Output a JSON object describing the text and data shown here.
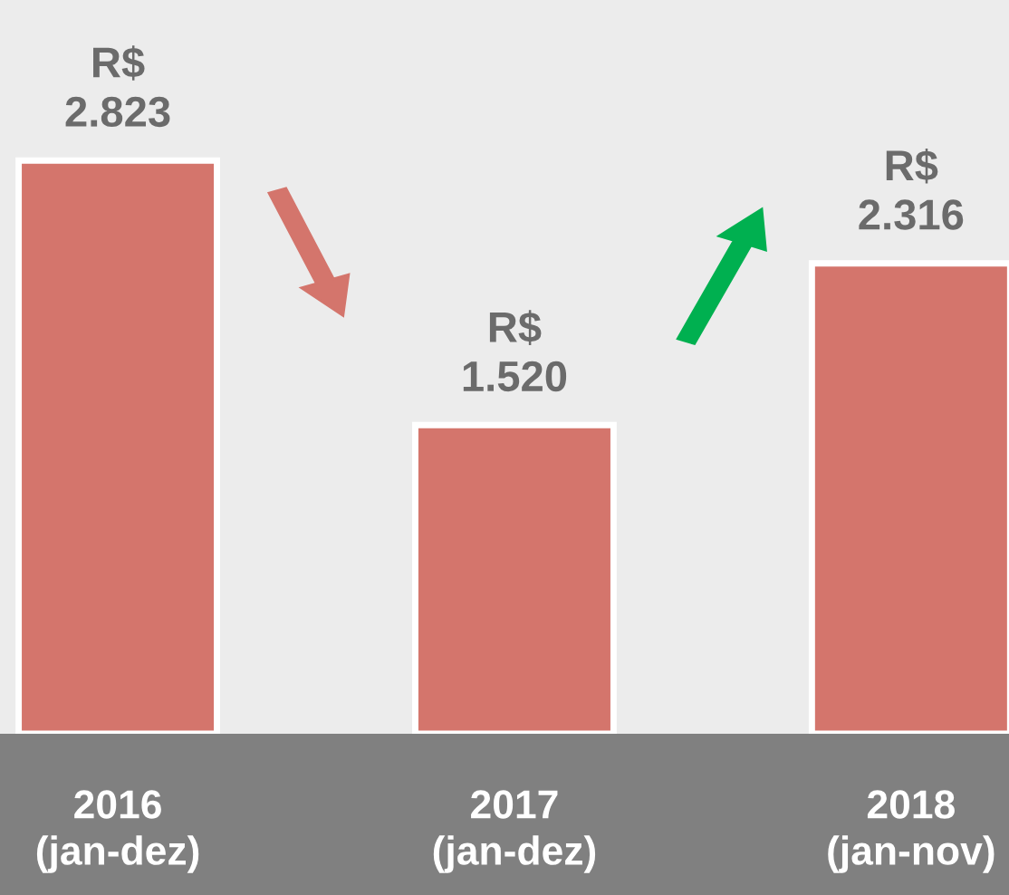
{
  "chart_data": {
    "type": "bar",
    "categories": [
      "2016\n(jan-dez)",
      "2017\n(jan-dez)",
      "2018\n(jan-nov)"
    ],
    "values": [
      2823,
      1520,
      2316
    ],
    "color": "#d4756c",
    "value_labels": [
      "R$\n2.823",
      "R$\n1.520",
      "R$\n2.316"
    ],
    "grid": false,
    "legend": false
  }
}
